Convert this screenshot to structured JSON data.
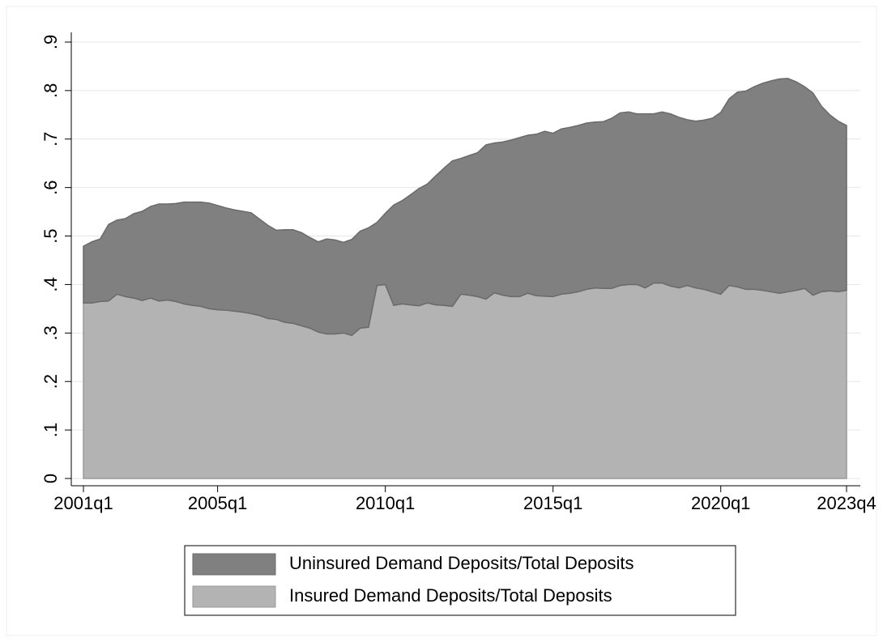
{
  "chart_data": {
    "type": "area",
    "stacked": true,
    "grid": true,
    "x": [
      "2001q1",
      "2001q2",
      "2001q3",
      "2001q4",
      "2002q1",
      "2002q2",
      "2002q3",
      "2002q4",
      "2003q1",
      "2003q2",
      "2003q3",
      "2003q4",
      "2004q1",
      "2004q2",
      "2004q3",
      "2004q4",
      "2005q1",
      "2005q2",
      "2005q3",
      "2005q4",
      "2006q1",
      "2006q2",
      "2006q3",
      "2006q4",
      "2007q1",
      "2007q2",
      "2007q3",
      "2007q4",
      "2008q1",
      "2008q2",
      "2008q3",
      "2008q4",
      "2009q1",
      "2009q2",
      "2009q3",
      "2009q4",
      "2010q1",
      "2010q2",
      "2010q3",
      "2010q4",
      "2011q1",
      "2011q2",
      "2011q3",
      "2011q4",
      "2012q1",
      "2012q2",
      "2012q3",
      "2012q4",
      "2013q1",
      "2013q2",
      "2013q3",
      "2013q4",
      "2014q1",
      "2014q2",
      "2014q3",
      "2014q4",
      "2015q1",
      "2015q2",
      "2015q3",
      "2015q4",
      "2016q1",
      "2016q2",
      "2016q3",
      "2016q4",
      "2017q1",
      "2017q2",
      "2017q3",
      "2017q4",
      "2018q1",
      "2018q2",
      "2018q3",
      "2018q4",
      "2019q1",
      "2019q2",
      "2019q3",
      "2019q4",
      "2020q1",
      "2020q2",
      "2020q3",
      "2020q4",
      "2021q1",
      "2021q2",
      "2021q3",
      "2021q4",
      "2022q1",
      "2022q2",
      "2022q3",
      "2022q4",
      "2023q1",
      "2023q2",
      "2023q3",
      "2023q4"
    ],
    "series": [
      {
        "name": "Uninsured Demand Deposits/Total Deposits",
        "color": "#808080",
        "values": [
          0.117,
          0.126,
          0.129,
          0.158,
          0.153,
          0.161,
          0.174,
          0.184,
          0.189,
          0.2,
          0.198,
          0.202,
          0.21,
          0.213,
          0.215,
          0.218,
          0.215,
          0.211,
          0.209,
          0.208,
          0.208,
          0.199,
          0.192,
          0.184,
          0.191,
          0.193,
          0.192,
          0.187,
          0.186,
          0.196,
          0.194,
          0.187,
          0.198,
          0.2,
          0.205,
          0.13,
          0.147,
          0.207,
          0.213,
          0.227,
          0.242,
          0.245,
          0.266,
          0.283,
          0.3,
          0.28,
          0.288,
          0.297,
          0.318,
          0.309,
          0.316,
          0.323,
          0.328,
          0.326,
          0.333,
          0.34,
          0.337,
          0.341,
          0.342,
          0.343,
          0.343,
          0.342,
          0.344,
          0.351,
          0.356,
          0.356,
          0.352,
          0.359,
          0.349,
          0.353,
          0.355,
          0.352,
          0.342,
          0.344,
          0.349,
          0.358,
          0.375,
          0.385,
          0.402,
          0.409,
          0.418,
          0.427,
          0.435,
          0.442,
          0.44,
          0.43,
          0.416,
          0.417,
          0.383,
          0.363,
          0.352,
          0.34
        ]
      },
      {
        "name": "Insured Demand Deposits/Total Deposits",
        "color": "#b3b3b3",
        "values": [
          0.362,
          0.362,
          0.365,
          0.366,
          0.38,
          0.375,
          0.372,
          0.367,
          0.372,
          0.366,
          0.368,
          0.365,
          0.36,
          0.357,
          0.355,
          0.35,
          0.348,
          0.347,
          0.345,
          0.343,
          0.34,
          0.336,
          0.33,
          0.328,
          0.322,
          0.32,
          0.315,
          0.31,
          0.302,
          0.298,
          0.298,
          0.3,
          0.295,
          0.31,
          0.312,
          0.398,
          0.4,
          0.357,
          0.36,
          0.358,
          0.356,
          0.362,
          0.358,
          0.357,
          0.355,
          0.38,
          0.378,
          0.375,
          0.37,
          0.383,
          0.378,
          0.375,
          0.375,
          0.382,
          0.377,
          0.376,
          0.375,
          0.38,
          0.382,
          0.385,
          0.39,
          0.393,
          0.392,
          0.392,
          0.398,
          0.4,
          0.4,
          0.393,
          0.403,
          0.403,
          0.397,
          0.393,
          0.398,
          0.393,
          0.39,
          0.385,
          0.38,
          0.398,
          0.395,
          0.39,
          0.39,
          0.388,
          0.385,
          0.382,
          0.385,
          0.388,
          0.392,
          0.378,
          0.385,
          0.387,
          0.385,
          0.388
        ]
      }
    ],
    "xticks": [
      "2001q1",
      "2005q1",
      "2010q1",
      "2015q1",
      "2020q1",
      "2023q4"
    ],
    "ylim": [
      -0.015,
      0.92
    ],
    "yticks": [
      0,
      {
        "value": 0.1,
        "label": ".1"
      },
      {
        "value": 0.2,
        "label": ".2"
      },
      {
        "value": 0.3,
        "label": ".3"
      },
      {
        "value": 0.4,
        "label": ".4"
      },
      {
        "value": 0.5,
        "label": ".5"
      },
      {
        "value": 0.6,
        "label": ".6"
      },
      {
        "value": 0.7,
        "label": ".7"
      },
      {
        "value": 0.8,
        "label": ".8"
      },
      {
        "value": 0.9,
        "label": ".9"
      }
    ]
  }
}
